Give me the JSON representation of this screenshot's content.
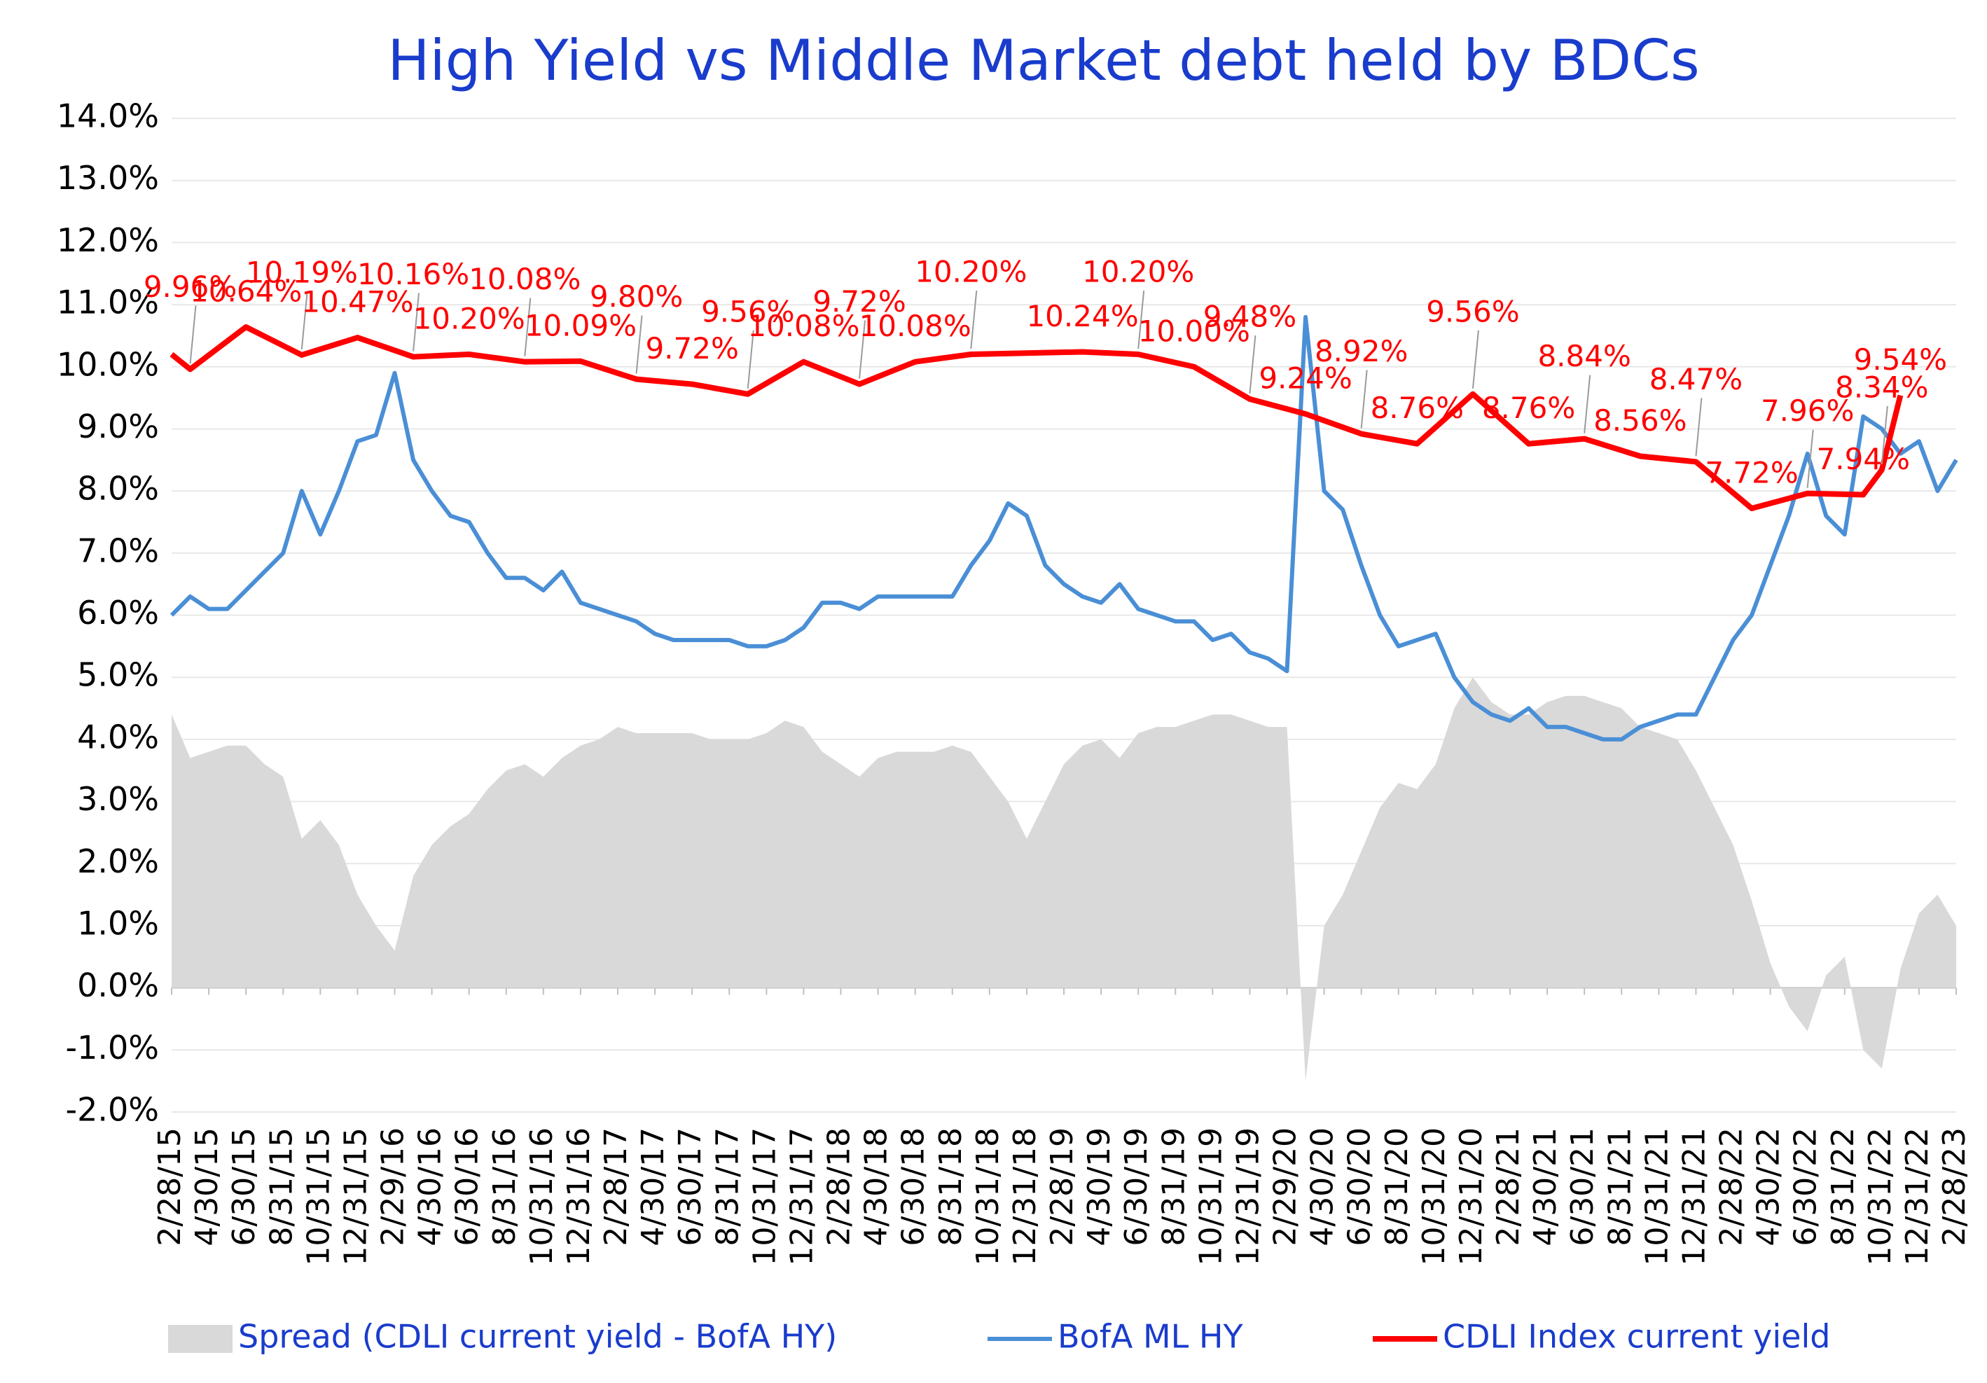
{
  "chart_data": {
    "type": "line",
    "title": "High Yield  vs  Middle Market debt held by BDCs",
    "categories": [
      "2/28/15",
      null,
      "4/30/15",
      null,
      "6/30/15",
      null,
      "8/31/15",
      null,
      "10/31/15",
      null,
      "12/31/15",
      null,
      "2/29/16",
      null,
      "4/30/16",
      null,
      "6/30/16",
      null,
      "8/31/16",
      null,
      "10/31/16",
      null,
      "12/31/16",
      null,
      "2/28/17",
      null,
      "4/30/17",
      null,
      "6/30/17",
      null,
      "8/31/17",
      null,
      "10/31/17",
      null,
      "12/31/17",
      null,
      "2/28/18",
      null,
      "4/30/18",
      null,
      "6/30/18",
      null,
      "8/31/18",
      null,
      "10/31/18",
      null,
      "12/31/18",
      null,
      "2/28/19",
      null,
      "4/30/19",
      null,
      "6/30/19",
      null,
      "8/31/19",
      null,
      "10/31/19",
      null,
      "12/31/19",
      null,
      "2/29/20",
      null,
      "4/30/20",
      null,
      "6/30/20",
      null,
      "8/31/20",
      null,
      "10/31/20",
      null,
      "12/31/20",
      null,
      "2/28/21",
      null,
      "4/30/21",
      null,
      "6/30/21",
      null,
      "8/31/21",
      null,
      "10/31/21",
      null,
      "12/31/21",
      null,
      "2/28/22",
      null,
      "4/30/22",
      null,
      "6/30/22",
      null,
      "8/31/22",
      null,
      "10/31/22",
      null,
      "12/31/22",
      null,
      "2/28/23"
    ],
    "series": [
      {
        "name": "Spread (CDLI current yield - BofA HY)",
        "color": "#d9d9d9",
        "kind": "area",
        "values": [
          4.4,
          3.7,
          3.8,
          3.9,
          3.9,
          3.6,
          3.4,
          2.4,
          2.7,
          2.3,
          1.5,
          1.0,
          0.6,
          1.8,
          2.3,
          2.6,
          2.8,
          3.2,
          3.5,
          3.6,
          3.4,
          3.7,
          3.9,
          4.0,
          4.2,
          4.1,
          4.1,
          4.1,
          4.1,
          4.0,
          4.0,
          4.0,
          4.1,
          4.3,
          4.2,
          3.8,
          3.6,
          3.4,
          3.7,
          3.8,
          3.8,
          3.8,
          3.9,
          3.8,
          3.4,
          3.0,
          2.4,
          3.0,
          3.6,
          3.9,
          4.0,
          3.7,
          4.1,
          4.2,
          4.2,
          4.3,
          4.4,
          4.4,
          4.3,
          4.2,
          4.2,
          -1.5,
          1.0,
          1.5,
          2.2,
          2.9,
          3.3,
          3.2,
          3.6,
          4.5,
          5.0,
          4.6,
          4.4,
          4.4,
          4.6,
          4.7,
          4.7,
          4.6,
          4.5,
          4.2,
          4.1,
          4.0,
          3.5,
          2.9,
          2.3,
          1.4,
          0.4,
          -0.3,
          -0.7,
          0.2,
          0.5,
          -1.0,
          -1.3,
          0.3,
          1.2,
          1.5,
          1.0
        ]
      },
      {
        "name": "BofA ML HY",
        "color": "#4a8fd6",
        "kind": "line",
        "values": [
          6.0,
          6.3,
          6.1,
          6.1,
          6.4,
          6.7,
          7.0,
          8.0,
          7.3,
          8.0,
          8.8,
          8.9,
          9.9,
          8.5,
          8.0,
          7.6,
          7.5,
          7.0,
          6.6,
          6.6,
          6.4,
          6.7,
          6.2,
          6.1,
          6.0,
          5.9,
          5.7,
          5.6,
          5.6,
          5.6,
          5.6,
          5.5,
          5.5,
          5.6,
          5.8,
          6.2,
          6.2,
          6.1,
          6.3,
          6.3,
          6.3,
          6.3,
          6.3,
          6.8,
          7.2,
          7.8,
          7.6,
          6.8,
          6.5,
          6.3,
          6.2,
          6.5,
          6.1,
          6.0,
          5.9,
          5.9,
          5.6,
          5.7,
          5.4,
          5.3,
          5.1,
          10.8,
          8.0,
          7.7,
          6.8,
          6.0,
          5.5,
          5.6,
          5.7,
          5.0,
          4.6,
          4.4,
          4.3,
          4.5,
          4.2,
          4.2,
          4.1,
          4.0,
          4.0,
          4.2,
          4.3,
          4.4,
          4.4,
          5.0,
          5.6,
          6.0,
          6.8,
          7.6,
          8.6,
          7.6,
          7.3,
          9.2,
          9.0,
          8.6,
          8.8,
          8.0,
          8.5
        ]
      },
      {
        "name": "CDLI Index current yield",
        "color": "#ff0000",
        "kind": "line",
        "span_gaps": true,
        "values": [
          10.2,
          9.96,
          null,
          null,
          10.64,
          null,
          null,
          10.19,
          null,
          null,
          10.47,
          null,
          null,
          10.16,
          null,
          null,
          10.2,
          null,
          null,
          10.08,
          null,
          null,
          10.09,
          null,
          null,
          9.8,
          null,
          null,
          9.72,
          null,
          null,
          9.56,
          null,
          null,
          10.08,
          null,
          null,
          9.72,
          null,
          null,
          10.08,
          null,
          null,
          10.2,
          null,
          null,
          10.22,
          null,
          null,
          10.24,
          null,
          null,
          10.2,
          null,
          null,
          10.0,
          null,
          null,
          9.48,
          null,
          null,
          9.24,
          null,
          null,
          8.92,
          null,
          null,
          8.76,
          null,
          null,
          9.56,
          null,
          null,
          8.76,
          null,
          null,
          8.84,
          null,
          null,
          8.56,
          null,
          null,
          8.47,
          null,
          null,
          7.72,
          null,
          null,
          7.96,
          null,
          null,
          7.94,
          8.34,
          9.54,
          null,
          null,
          null
        ],
        "value_labels": [
          null,
          "9.96%",
          null,
          null,
          "10.64%",
          null,
          null,
          "10.19%",
          null,
          null,
          "10.47%",
          null,
          null,
          "10.16%",
          null,
          null,
          "10.20%",
          null,
          null,
          "10.08%",
          null,
          null,
          "10.09%",
          null,
          null,
          "9.80%",
          null,
          null,
          "9.72%",
          null,
          null,
          "9.56%",
          null,
          null,
          "10.08%",
          null,
          null,
          "9.72%",
          null,
          null,
          "10.08%",
          null,
          null,
          "10.20%",
          null,
          null,
          null,
          null,
          null,
          "10.24%",
          null,
          null,
          "10.20%",
          null,
          null,
          "10.00%",
          null,
          null,
          "9.48%",
          null,
          null,
          "9.24%",
          null,
          null,
          "8.92%",
          null,
          null,
          "8.76%",
          null,
          null,
          "9.56%",
          null,
          null,
          "8.76%",
          null,
          null,
          "8.84%",
          null,
          null,
          "8.56%",
          null,
          null,
          "8.47%",
          null,
          null,
          "7.72%",
          null,
          null,
          "7.96%",
          null,
          null,
          "7.94%",
          "8.34%",
          "9.54%",
          null,
          null,
          null
        ]
      }
    ],
    "ylim": [
      -2,
      14
    ],
    "yticks": [
      {
        "value": -2,
        "label": "-2.0%"
      },
      {
        "value": -1,
        "label": "-1.0%"
      },
      {
        "value": 0,
        "label": "0.0%"
      },
      {
        "value": 1,
        "label": "1.0%"
      },
      {
        "value": 2,
        "label": "2.0%"
      },
      {
        "value": 3,
        "label": "3.0%"
      },
      {
        "value": 4,
        "label": "4.0%"
      },
      {
        "value": 5,
        "label": "5.0%"
      },
      {
        "value": 6,
        "label": "6.0%"
      },
      {
        "value": 7,
        "label": "7.0%"
      },
      {
        "value": 8,
        "label": "8.0%"
      },
      {
        "value": 9,
        "label": "9.0%"
      },
      {
        "value": 10,
        "label": "10.0%"
      },
      {
        "value": 11,
        "label": "11.0%"
      },
      {
        "value": 12,
        "label": "12.0%"
      },
      {
        "value": 13,
        "label": "13.0%"
      },
      {
        "value": 14,
        "label": "14.0%"
      }
    ],
    "grid": true,
    "legend": "bottom"
  }
}
